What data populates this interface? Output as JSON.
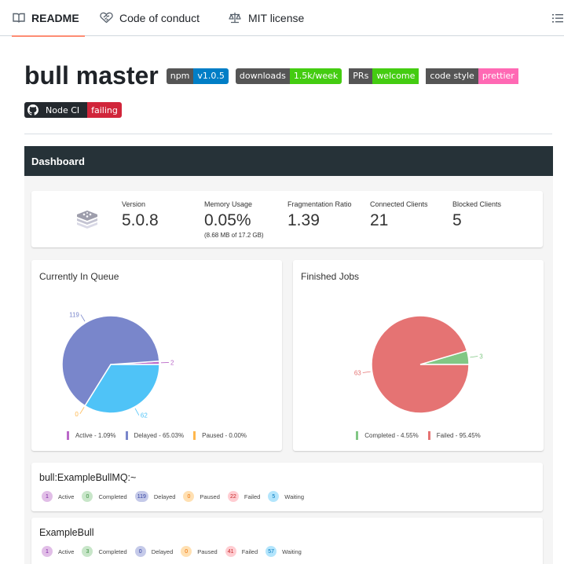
{
  "tabs": [
    {
      "label": "README",
      "icon": "book-icon",
      "active": true
    },
    {
      "label": "Code of conduct",
      "icon": "heart-handshake-icon",
      "active": false
    },
    {
      "label": "MIT license",
      "icon": "law-scale-icon",
      "active": false
    }
  ],
  "toc_icon": "list-unordered-icon",
  "title": "bull master",
  "badges": [
    {
      "left": "npm",
      "right": "v1.0.5",
      "color": "#007ec6"
    },
    {
      "left": "downloads",
      "right": "1.5k/week",
      "color": "#4c1"
    },
    {
      "left": "PRs",
      "right": "welcome",
      "color": "#4c1"
    },
    {
      "left": "code style",
      "right": "prettier",
      "color": "#ff69b4"
    }
  ],
  "ci_badge": {
    "left": "Node CI",
    "right": "failing",
    "color": "#d1253a"
  },
  "dashboard": {
    "header": "Dashboard",
    "stats": [
      {
        "label": "Version",
        "value": "5.0.8"
      },
      {
        "label": "Memory Usage",
        "value": "0.05%",
        "sub": "(8.68 MB of 17.2 GB)"
      },
      {
        "label": "Fragmentation Ratio",
        "value": "1.39"
      },
      {
        "label": "Connected Clients",
        "value": "21"
      },
      {
        "label": "Blocked Clients",
        "value": "5"
      }
    ],
    "in_queue": {
      "title": "Currently In Queue",
      "slices": [
        {
          "name": "Active",
          "value": 2,
          "label": "2",
          "color": "#ba68c8"
        },
        {
          "name": "Waiting",
          "value": 62,
          "label": "62",
          "color": "#4fc3f7"
        },
        {
          "name": "Paused",
          "value": 0,
          "label": "0",
          "color": "#ffb74d"
        },
        {
          "name": "Delayed",
          "value": 119,
          "label": "119",
          "color": "#7986cb"
        }
      ],
      "legend": [
        {
          "text": "Active - 1.09%",
          "color": "#ba68c8"
        },
        {
          "text": "Delayed - 65.03%",
          "color": "#7986cb"
        },
        {
          "text": "Paused - 0.00%",
          "color": "#ffb74d"
        }
      ]
    },
    "finished": {
      "title": "Finished Jobs",
      "slices": [
        {
          "name": "Completed",
          "value": 3,
          "label": "3",
          "color": "#81c784"
        },
        {
          "name": "Failed",
          "value": 63,
          "label": "63",
          "color": "#e57373"
        }
      ],
      "legend": [
        {
          "text": "Completed - 4.55%",
          "color": "#81c784"
        },
        {
          "text": "Failed - 95.45%",
          "color": "#e57373"
        }
      ]
    },
    "queues": [
      {
        "name": "bull:ExampleBullMQ:~",
        "counts": [
          {
            "label": "Active",
            "value": "1"
          },
          {
            "label": "Completed",
            "value": "0"
          },
          {
            "label": "Delayed",
            "value": "119"
          },
          {
            "label": "Paused",
            "value": "0"
          },
          {
            "label": "Failed",
            "value": "22"
          },
          {
            "label": "Waiting",
            "value": "5"
          }
        ]
      },
      {
        "name": "ExampleBull",
        "counts": [
          {
            "label": "Active",
            "value": "1"
          },
          {
            "label": "Completed",
            "value": "3"
          },
          {
            "label": "Delayed",
            "value": "0"
          },
          {
            "label": "Paused",
            "value": "0"
          },
          {
            "label": "Failed",
            "value": "41"
          },
          {
            "label": "Waiting",
            "value": "57"
          }
        ]
      }
    ],
    "chip_colors": {
      "Active": [
        "#e1bee7",
        "#7b1fa2"
      ],
      "Completed": [
        "#c8e6c9",
        "#388e3c"
      ],
      "Delayed": [
        "#c5cae9",
        "#303f9f"
      ],
      "Paused": [
        "#ffe0b2",
        "#ef6c00"
      ],
      "Failed": [
        "#ffcdd2",
        "#c62828"
      ],
      "Waiting": [
        "#b3e5fc",
        "#0277bd"
      ]
    }
  }
}
